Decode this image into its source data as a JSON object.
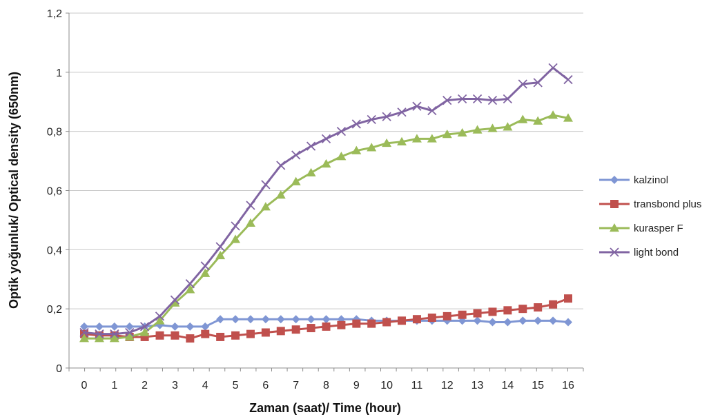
{
  "chart_data": {
    "type": "line",
    "xlabel": "Zaman (saat)/ Time (hour)",
    "ylabel": "Optik yoğunluk/ Optical density (650nm)",
    "xlim": [
      0,
      16
    ],
    "ylim": [
      0,
      1.2
    ],
    "x_ticks": [
      "0",
      "1",
      "2",
      "3",
      "4",
      "5",
      "6",
      "7",
      "8",
      "9",
      "10",
      "11",
      "12",
      "13",
      "14",
      "15",
      "16"
    ],
    "y_ticks": [
      "0",
      "0,2",
      "0,4",
      "0,6",
      "0,8",
      "1",
      "1,2"
    ],
    "grid": "horizontal",
    "legend_position": "right",
    "x": [
      0,
      0.5,
      1,
      1.5,
      2,
      2.5,
      3,
      3.5,
      4,
      4.5,
      5,
      5.5,
      6,
      6.5,
      7,
      7.5,
      8,
      8.5,
      9,
      9.5,
      10,
      10.5,
      11,
      11.5,
      12,
      12.5,
      13,
      13.5,
      14,
      14.5,
      15,
      15.5,
      16
    ],
    "series": [
      {
        "name": "kalzinol",
        "marker": "diamond",
        "color": "#7F96D4",
        "values": [
          0.14,
          0.14,
          0.14,
          0.14,
          0.14,
          0.145,
          0.14,
          0.14,
          0.14,
          0.165,
          0.165,
          0.165,
          0.165,
          0.165,
          0.165,
          0.165,
          0.165,
          0.165,
          0.165,
          0.16,
          0.16,
          0.16,
          0.16,
          0.16,
          0.16,
          0.16,
          0.16,
          0.155,
          0.155,
          0.16,
          0.16,
          0.16,
          0.155
        ]
      },
      {
        "name": "transbond plus",
        "marker": "square",
        "color": "#C0504D",
        "values": [
          0.115,
          0.11,
          0.11,
          0.105,
          0.105,
          0.11,
          0.11,
          0.1,
          0.115,
          0.105,
          0.11,
          0.115,
          0.12,
          0.125,
          0.13,
          0.135,
          0.14,
          0.145,
          0.15,
          0.15,
          0.155,
          0.16,
          0.165,
          0.17,
          0.175,
          0.18,
          0.185,
          0.19,
          0.195,
          0.2,
          0.205,
          0.215,
          0.235
        ]
      },
      {
        "name": "kurasper F",
        "marker": "triangle",
        "color": "#9BBB59",
        "values": [
          0.1,
          0.1,
          0.1,
          0.105,
          0.12,
          0.16,
          0.22,
          0.265,
          0.32,
          0.38,
          0.435,
          0.49,
          0.545,
          0.585,
          0.63,
          0.66,
          0.69,
          0.715,
          0.735,
          0.745,
          0.76,
          0.765,
          0.775,
          0.775,
          0.79,
          0.795,
          0.805,
          0.81,
          0.815,
          0.84,
          0.835,
          0.855,
          0.845
        ]
      },
      {
        "name": "light bond",
        "marker": "x",
        "color": "#8064A2",
        "values": [
          0.12,
          0.115,
          0.115,
          0.12,
          0.14,
          0.175,
          0.23,
          0.285,
          0.345,
          0.41,
          0.48,
          0.55,
          0.62,
          0.685,
          0.72,
          0.75,
          0.775,
          0.8,
          0.825,
          0.84,
          0.85,
          0.865,
          0.885,
          0.87,
          0.905,
          0.91,
          0.91,
          0.905,
          0.91,
          0.96,
          0.965,
          1.015,
          0.975
        ]
      }
    ]
  }
}
